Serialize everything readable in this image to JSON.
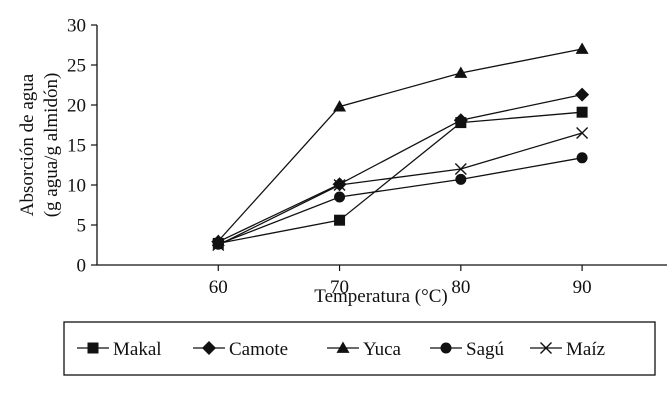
{
  "chart_data": {
    "type": "line",
    "title": "",
    "xlabel": "Temperatura (°C)",
    "ylabel_line1": "Absorción de agua",
    "ylabel_line2": "(g agua/g almidón)",
    "x": [
      60,
      70,
      80,
      90
    ],
    "xlim": [
      50,
      97
    ],
    "ylim": [
      0,
      30
    ],
    "x_ticks": [
      60,
      70,
      80,
      90
    ],
    "y_ticks": [
      0,
      5,
      10,
      15,
      20,
      25,
      30
    ],
    "grid": false,
    "legend_position": "bottom",
    "series": [
      {
        "name": "Makal",
        "marker": "square",
        "values": [
          2.7,
          5.6,
          17.8,
          19.1
        ]
      },
      {
        "name": "Camote",
        "marker": "diamond",
        "values": [
          2.9,
          10.1,
          18.1,
          21.3
        ]
      },
      {
        "name": "Yuca",
        "marker": "triangle",
        "values": [
          3.0,
          19.8,
          24.0,
          27.0
        ]
      },
      {
        "name": "Sagú",
        "marker": "circle",
        "values": [
          2.6,
          8.5,
          10.7,
          13.4
        ]
      },
      {
        "name": "Maíz",
        "marker": "x",
        "values": [
          2.5,
          10.0,
          12.0,
          16.5
        ]
      }
    ],
    "colors": {
      "line": "#111111",
      "axis": "#111111"
    }
  }
}
